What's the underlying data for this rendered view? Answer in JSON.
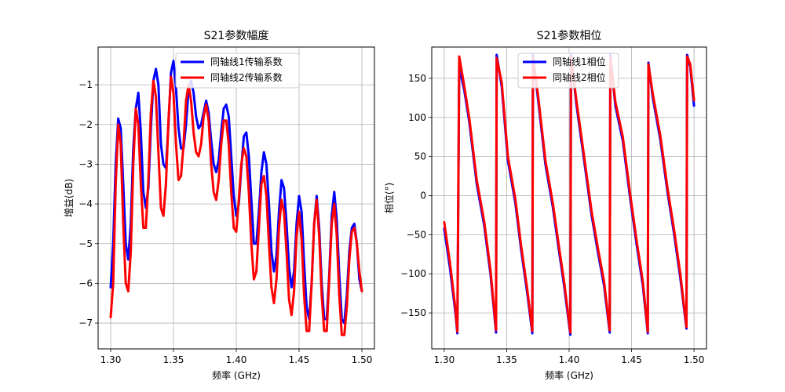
{
  "chart_data": [
    {
      "type": "line",
      "title": "S21参数幅度",
      "xlabel": "频率 (GHz)",
      "ylabel": "增益(dB)",
      "xlim": [
        1.29,
        1.51
      ],
      "ylim": [
        -7.65,
        -0.05
      ],
      "xticks": [
        1.3,
        1.35,
        1.4,
        1.45,
        1.5
      ],
      "xtick_labels": [
        "1.30",
        "1.35",
        "1.40",
        "1.45",
        "1.50"
      ],
      "yticks": [
        -7,
        -6,
        -5,
        -4,
        -3,
        -2,
        -1
      ],
      "ytick_labels": [
        "−7",
        "−6",
        "−5",
        "−4",
        "−3",
        "−2",
        "−1"
      ],
      "grid": true,
      "legend": "top-right",
      "series": [
        {
          "name": "同轴线1传输系数",
          "color": "#0000ff",
          "x": [
            1.3,
            1.302,
            1.304,
            1.306,
            1.308,
            1.31,
            1.312,
            1.314,
            1.316,
            1.318,
            1.32,
            1.322,
            1.324,
            1.326,
            1.328,
            1.33,
            1.332,
            1.334,
            1.336,
            1.338,
            1.34,
            1.342,
            1.344,
            1.346,
            1.348,
            1.35,
            1.352,
            1.354,
            1.356,
            1.358,
            1.36,
            1.362,
            1.364,
            1.366,
            1.368,
            1.37,
            1.372,
            1.374,
            1.376,
            1.378,
            1.38,
            1.382,
            1.384,
            1.386,
            1.388,
            1.39,
            1.392,
            1.394,
            1.396,
            1.398,
            1.4,
            1.402,
            1.404,
            1.406,
            1.408,
            1.41,
            1.412,
            1.414,
            1.416,
            1.418,
            1.42,
            1.422,
            1.424,
            1.426,
            1.428,
            1.43,
            1.432,
            1.434,
            1.436,
            1.438,
            1.44,
            1.442,
            1.444,
            1.446,
            1.448,
            1.45,
            1.452,
            1.454,
            1.456,
            1.458,
            1.46,
            1.462,
            1.464,
            1.466,
            1.468,
            1.47,
            1.472,
            1.474,
            1.476,
            1.478,
            1.48,
            1.482,
            1.484,
            1.486,
            1.488,
            1.49,
            1.492,
            1.494,
            1.496,
            1.498,
            1.5
          ],
          "y": [
            -6.1,
            -5.0,
            -3.0,
            -1.85,
            -2.1,
            -3.5,
            -5.0,
            -5.4,
            -4.5,
            -2.6,
            -1.6,
            -1.2,
            -2.2,
            -3.7,
            -4.1,
            -3.6,
            -2.1,
            -0.9,
            -0.6,
            -1.0,
            -2.5,
            -3.0,
            -3.1,
            -2.0,
            -0.7,
            -0.4,
            -1.1,
            -2.1,
            -2.6,
            -2.6,
            -2.0,
            -1.1,
            -0.9,
            -1.2,
            -1.8,
            -2.1,
            -2.0,
            -1.7,
            -1.4,
            -1.7,
            -2.4,
            -3.0,
            -3.2,
            -2.9,
            -2.2,
            -1.6,
            -1.5,
            -1.8,
            -2.8,
            -3.8,
            -4.3,
            -4.0,
            -3.1,
            -2.3,
            -2.2,
            -2.8,
            -3.9,
            -5.0,
            -5.0,
            -4.2,
            -3.2,
            -2.7,
            -3.0,
            -4.0,
            -5.2,
            -5.7,
            -5.3,
            -4.2,
            -3.4,
            -3.6,
            -4.5,
            -5.6,
            -6.1,
            -5.7,
            -4.5,
            -3.8,
            -4.2,
            -5.5,
            -6.6,
            -6.9,
            -6.0,
            -4.5,
            -3.8,
            -4.6,
            -6.0,
            -6.9,
            -6.9,
            -5.8,
            -4.3,
            -3.7,
            -4.4,
            -5.8,
            -6.9,
            -7.0,
            -6.3,
            -5.2,
            -4.6,
            -4.5,
            -5.0,
            -5.9,
            -6.2
          ]
        },
        {
          "name": "同轴线2传输系数",
          "color": "#ff0000",
          "x": [
            1.3,
            1.302,
            1.304,
            1.306,
            1.308,
            1.31,
            1.312,
            1.314,
            1.316,
            1.318,
            1.32,
            1.322,
            1.324,
            1.326,
            1.328,
            1.33,
            1.332,
            1.334,
            1.336,
            1.338,
            1.34,
            1.342,
            1.344,
            1.346,
            1.348,
            1.35,
            1.352,
            1.354,
            1.356,
            1.358,
            1.36,
            1.362,
            1.364,
            1.366,
            1.368,
            1.37,
            1.372,
            1.374,
            1.376,
            1.378,
            1.38,
            1.382,
            1.384,
            1.386,
            1.388,
            1.39,
            1.392,
            1.394,
            1.396,
            1.398,
            1.4,
            1.402,
            1.404,
            1.406,
            1.408,
            1.41,
            1.412,
            1.414,
            1.416,
            1.418,
            1.42,
            1.422,
            1.424,
            1.426,
            1.428,
            1.43,
            1.432,
            1.434,
            1.436,
            1.438,
            1.44,
            1.442,
            1.444,
            1.446,
            1.448,
            1.45,
            1.452,
            1.454,
            1.456,
            1.458,
            1.46,
            1.462,
            1.464,
            1.466,
            1.468,
            1.47,
            1.472,
            1.474,
            1.476,
            1.478,
            1.48,
            1.482,
            1.484,
            1.486,
            1.488,
            1.49,
            1.492,
            1.494,
            1.496,
            1.498,
            1.5
          ],
          "y": [
            -6.85,
            -6.0,
            -3.5,
            -2.0,
            -2.5,
            -4.5,
            -6.0,
            -6.2,
            -5.2,
            -3.0,
            -1.6,
            -2.0,
            -3.5,
            -4.6,
            -4.6,
            -3.4,
            -1.7,
            -0.9,
            -1.3,
            -2.7,
            -4.1,
            -4.3,
            -3.5,
            -1.9,
            -0.8,
            -1.2,
            -2.5,
            -3.4,
            -3.3,
            -2.5,
            -1.4,
            -1.0,
            -1.4,
            -2.2,
            -2.7,
            -2.8,
            -2.5,
            -1.8,
            -1.5,
            -1.9,
            -3.0,
            -3.7,
            -3.9,
            -3.4,
            -2.5,
            -1.9,
            -1.9,
            -2.5,
            -3.7,
            -4.6,
            -4.7,
            -3.9,
            -3.0,
            -2.6,
            -2.8,
            -3.7,
            -5.0,
            -5.9,
            -5.7,
            -4.6,
            -3.5,
            -3.3,
            -3.8,
            -5.0,
            -6.1,
            -6.5,
            -5.9,
            -4.6,
            -3.9,
            -4.2,
            -5.2,
            -6.4,
            -6.8,
            -6.2,
            -4.8,
            -4.2,
            -4.9,
            -6.3,
            -7.2,
            -7.2,
            -6.0,
            -4.5,
            -3.9,
            -4.8,
            -6.3,
            -7.2,
            -7.2,
            -5.9,
            -4.5,
            -4.0,
            -4.8,
            -6.3,
            -7.3,
            -7.3,
            -6.6,
            -5.4,
            -4.7,
            -4.6,
            -5.0,
            -5.7,
            -6.2
          ]
        }
      ]
    },
    {
      "type": "line",
      "title": "S21参数相位",
      "xlabel": "频率 (GHz)",
      "ylabel": "相位(°)",
      "xlim": [
        1.29,
        1.51
      ],
      "ylim": [
        -196,
        190
      ],
      "xticks": [
        1.3,
        1.35,
        1.4,
        1.45,
        1.5
      ],
      "xtick_labels": [
        "1.30",
        "1.35",
        "1.40",
        "1.45",
        "1.50"
      ],
      "yticks": [
        -150,
        -100,
        -50,
        0,
        50,
        100,
        150
      ],
      "ytick_labels": [
        "−150",
        "−100",
        "−50",
        "0",
        "50",
        "100",
        "150"
      ],
      "grid": true,
      "legend": "top-center",
      "series": [
        {
          "name": "同轴线1相位",
          "color": "#0000ff",
          "x": [
            1.3,
            1.3045,
            1.309,
            1.3105,
            1.312,
            1.316,
            1.32,
            1.326,
            1.332,
            1.337,
            1.3415,
            1.342,
            1.346,
            1.351,
            1.357,
            1.3615,
            1.3665,
            1.3705,
            1.371,
            1.375,
            1.381,
            1.387,
            1.392,
            1.396,
            1.401,
            1.4015,
            1.406,
            1.412,
            1.418,
            1.423,
            1.428,
            1.4325,
            1.433,
            1.437,
            1.443,
            1.449,
            1.454,
            1.459,
            1.463,
            1.4635,
            1.467,
            1.473,
            1.479,
            1.484,
            1.489,
            1.494,
            1.4945,
            1.497,
            1.5
          ],
          "y": [
            -42,
            -92,
            -150,
            -176,
            165,
            135,
            95,
            15,
            -38,
            -100,
            -175,
            180,
            140,
            45,
            -10,
            -68,
            -125,
            -176,
            180,
            125,
            40,
            -15,
            -72,
            -115,
            -178,
            180,
            115,
            45,
            -25,
            -72,
            -115,
            -175,
            180,
            115,
            70,
            -5,
            -62,
            -115,
            -176,
            170,
            125,
            72,
            2,
            -48,
            -105,
            -170,
            180,
            165,
            115
          ]
        },
        {
          "name": "同轴线2相位",
          "color": "#ff0000",
          "x": [
            1.3,
            1.3045,
            1.309,
            1.3105,
            1.312,
            1.316,
            1.32,
            1.326,
            1.332,
            1.337,
            1.3415,
            1.342,
            1.346,
            1.351,
            1.357,
            1.3615,
            1.3665,
            1.3705,
            1.371,
            1.375,
            1.381,
            1.387,
            1.392,
            1.396,
            1.401,
            1.4015,
            1.406,
            1.412,
            1.418,
            1.423,
            1.428,
            1.4325,
            1.433,
            1.437,
            1.443,
            1.449,
            1.454,
            1.459,
            1.463,
            1.4635,
            1.467,
            1.473,
            1.479,
            1.484,
            1.489,
            1.494,
            1.4945,
            1.497,
            1.5
          ],
          "y": [
            -34,
            -85,
            -145,
            -174,
            178,
            140,
            100,
            20,
            -33,
            -95,
            -172,
            176,
            145,
            50,
            -5,
            -63,
            -120,
            -173,
            176,
            130,
            45,
            -10,
            -67,
            -110,
            -175,
            177,
            120,
            50,
            -20,
            -67,
            -110,
            -172,
            176,
            120,
            75,
            0,
            -57,
            -110,
            -174,
            168,
            130,
            77,
            7,
            -43,
            -100,
            -168,
            178,
            168,
            122
          ]
        }
      ]
    }
  ]
}
